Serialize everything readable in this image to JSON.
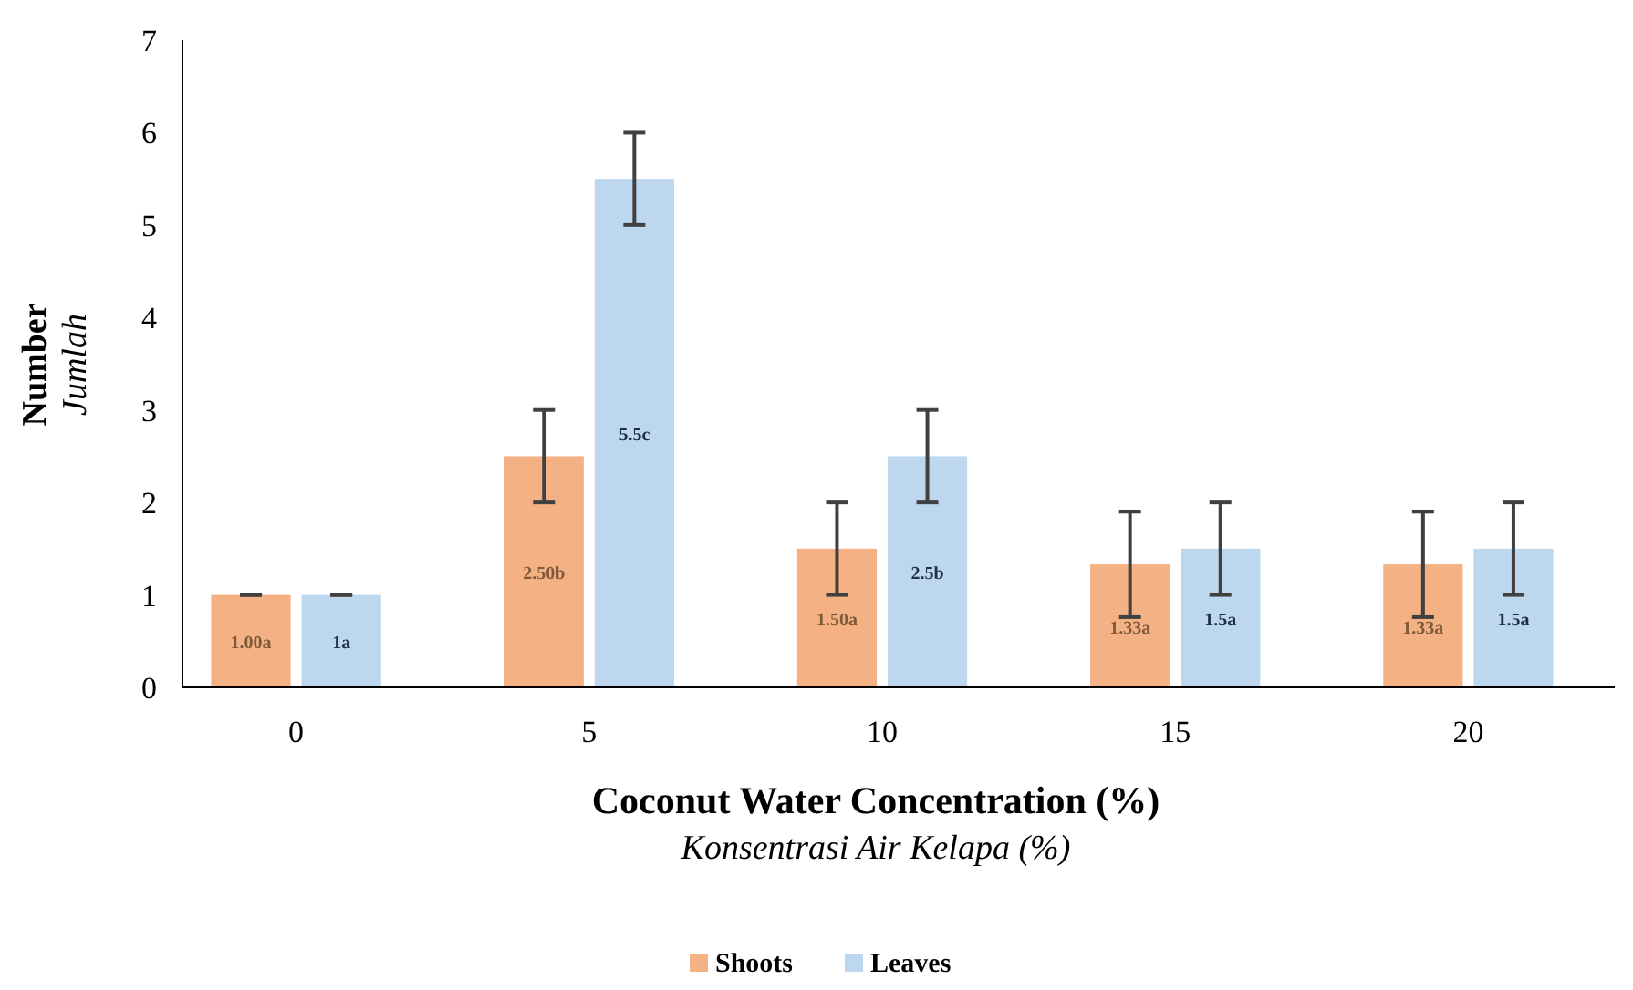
{
  "chart_data": {
    "type": "bar",
    "xlabel": "Coconut Water Concentration (%)\nKonsentrasi Air Kelapa (%)",
    "ylabel": "Number\nJumlah",
    "categories": [
      "0",
      "5",
      "10",
      "15",
      "20"
    ],
    "series": [
      {
        "name": "Shoots",
        "color": "#f4b183",
        "values": [
          1.0,
          2.5,
          1.5,
          1.33,
          1.33
        ],
        "errors": [
          0,
          0.5,
          0.5,
          0.57,
          0.57
        ],
        "value_labels": [
          "1.00a",
          "2.50b",
          "1.50a",
          "1.33a",
          "1.33a"
        ]
      },
      {
        "name": "Leaves",
        "color": "#bdd7ee",
        "values": [
          1,
          5.5,
          2.5,
          1.5,
          1.5
        ],
        "errors": [
          0,
          0.5,
          0.5,
          0.5,
          0.5
        ],
        "value_labels": [
          "1a",
          "5.5c",
          "2.5b",
          "1.5a",
          "1.5a"
        ]
      }
    ],
    "ylim": [
      0,
      7
    ],
    "yticks": [
      0,
      1,
      2,
      3,
      4,
      5,
      6,
      7
    ],
    "grid": false,
    "legend": "bottom"
  }
}
